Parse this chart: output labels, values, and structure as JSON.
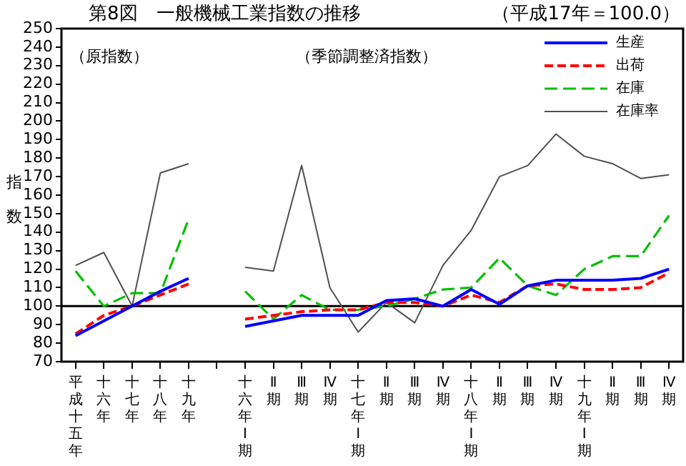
{
  "chart_data": {
    "type": "line",
    "title": "第8図　一般機械工業指数の推移",
    "subtitle": "（平成17年＝100.0）",
    "ylabel": "指数",
    "annotations": [
      "（原指数）",
      "（季節調整済指数）"
    ],
    "categories": [
      "平成十五年",
      "十六年",
      "十七年",
      "十八年",
      "十九年",
      null,
      "十六年Ⅰ期",
      "Ⅱ期",
      "Ⅲ期",
      "Ⅳ期",
      "十七年Ⅰ期",
      "Ⅱ期",
      "Ⅲ期",
      "Ⅳ期",
      "十八年Ⅰ期",
      "Ⅱ期",
      "Ⅲ期",
      "Ⅳ期",
      "十九年Ⅰ期",
      "Ⅱ期",
      "Ⅲ期",
      "Ⅳ期"
    ],
    "series": [
      {
        "name": "生産",
        "color": "#0000ff",
        "line_style": "solid",
        "values": [
          84,
          92,
          100,
          108,
          115,
          null,
          89,
          92,
          95,
          95,
          95,
          103,
          104,
          100,
          109,
          101,
          111,
          114,
          114,
          114,
          115,
          120
        ]
      },
      {
        "name": "出荷",
        "color": "#ff0000",
        "line_style": "dashed",
        "values": [
          85,
          95,
          100,
          106,
          112,
          null,
          93,
          95,
          97,
          98,
          98,
          102,
          102,
          100,
          106,
          102,
          111,
          112,
          109,
          109,
          110,
          118
        ]
      },
      {
        "name": "在庫",
        "color": "#00c000",
        "line_style": "dashed",
        "values": [
          119,
          100,
          107,
          107,
          147,
          null,
          108,
          93,
          106,
          98,
          98,
          100,
          104,
          109,
          110,
          126,
          111,
          106,
          120,
          127,
          127,
          149
        ]
      },
      {
        "name": "在庫率",
        "color": "#505050",
        "line_style": "solid",
        "values": [
          122,
          129,
          100,
          172,
          177,
          null,
          121,
          119,
          176,
          110,
          86,
          102,
          91,
          122,
          141,
          170,
          176,
          193,
          181,
          177,
          169,
          171
        ]
      }
    ],
    "ylim": [
      70,
      250
    ],
    "yticks": [
      70,
      80,
      90,
      100,
      110,
      120,
      130,
      140,
      150,
      160,
      170,
      180,
      190,
      200,
      210,
      220,
      230,
      240,
      250
    ],
    "ref_lines": [
      {
        "axis": "y",
        "value": 100,
        "color": "#000000"
      }
    ],
    "grid": false,
    "legend": "top right",
    "marker": "none"
  }
}
